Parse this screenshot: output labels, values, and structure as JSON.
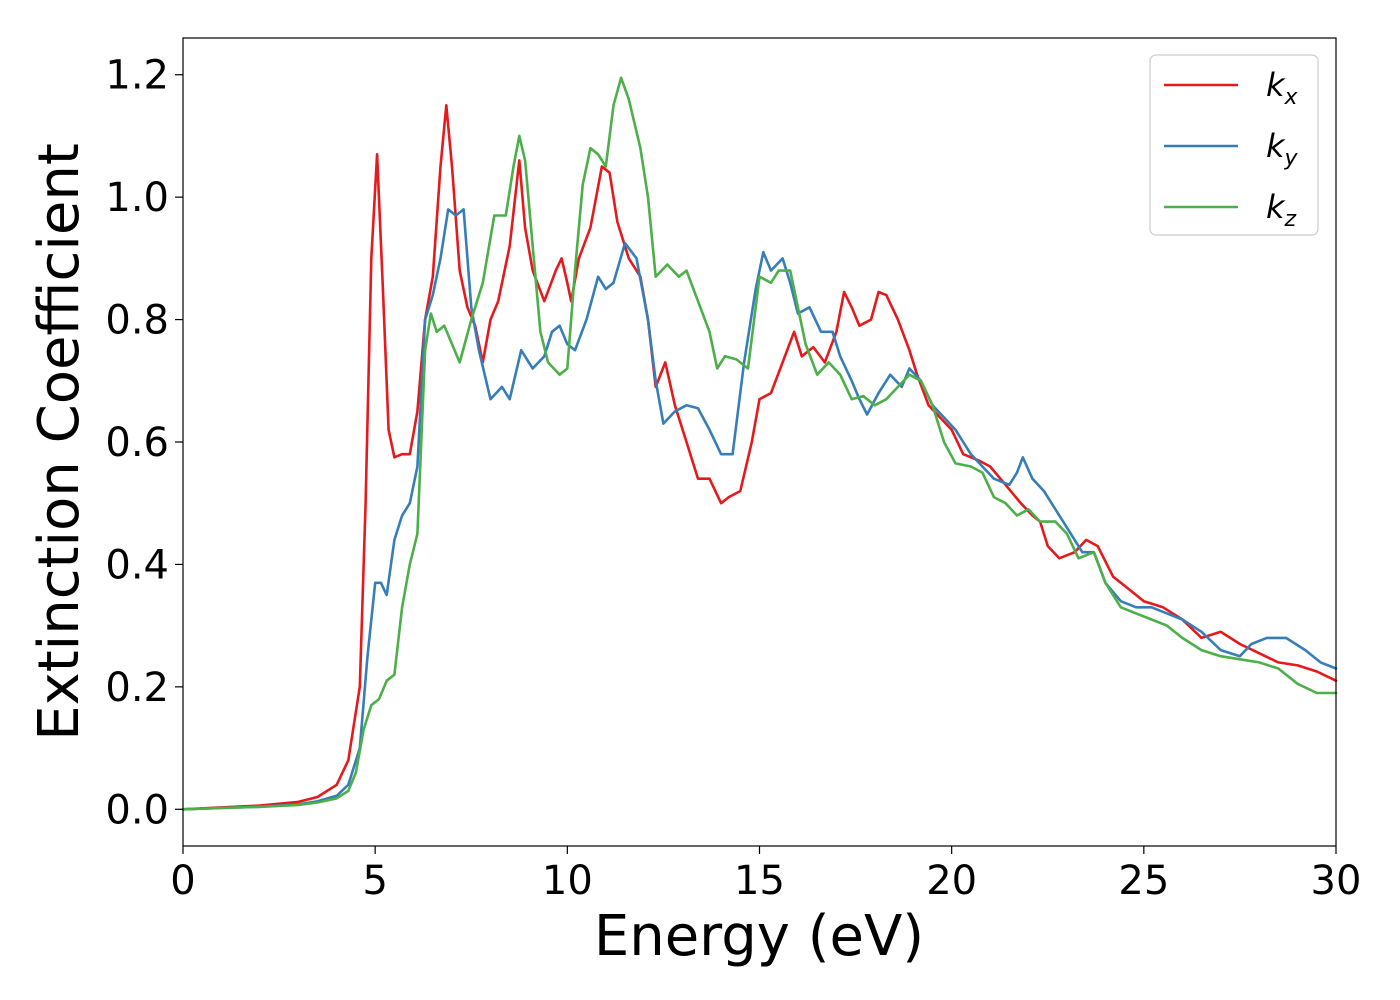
{
  "chart_data": {
    "type": "line",
    "title": "",
    "xlabel": "Energy (eV)",
    "ylabel": "Extinction Coefficient",
    "xlim": [
      0,
      30
    ],
    "ylim": [
      -0.06,
      1.26
    ],
    "xticks": [
      "0",
      "5",
      "10",
      "15",
      "20",
      "25",
      "30"
    ],
    "xtick_values": [
      0,
      5,
      10,
      15,
      20,
      25,
      30
    ],
    "yticks": [
      "0.0",
      "0.2",
      "0.4",
      "0.6",
      "0.8",
      "1.0",
      "1.2"
    ],
    "ytick_values": [
      0,
      0.2,
      0.4,
      0.6,
      0.8,
      1.0,
      1.2
    ],
    "grid": false,
    "legend_position": "top-right",
    "series": [
      {
        "name": "k",
        "subscript": "x",
        "color": "#e41a1c",
        "points": [
          [
            0,
            0
          ],
          [
            1,
            0.003
          ],
          [
            2,
            0.006
          ],
          [
            3,
            0.012
          ],
          [
            3.5,
            0.02
          ],
          [
            4,
            0.04
          ],
          [
            4.3,
            0.08
          ],
          [
            4.6,
            0.2
          ],
          [
            4.75,
            0.5
          ],
          [
            4.9,
            0.9
          ],
          [
            5.05,
            1.07
          ],
          [
            5.2,
            0.85
          ],
          [
            5.35,
            0.62
          ],
          [
            5.5,
            0.575
          ],
          [
            5.7,
            0.58
          ],
          [
            5.9,
            0.58
          ],
          [
            6.1,
            0.65
          ],
          [
            6.3,
            0.8
          ],
          [
            6.5,
            0.87
          ],
          [
            6.7,
            1.05
          ],
          [
            6.85,
            1.15
          ],
          [
            7.0,
            1.05
          ],
          [
            7.2,
            0.88
          ],
          [
            7.4,
            0.82
          ],
          [
            7.6,
            0.79
          ],
          [
            7.8,
            0.73
          ],
          [
            8.0,
            0.8
          ],
          [
            8.2,
            0.83
          ],
          [
            8.5,
            0.92
          ],
          [
            8.75,
            1.06
          ],
          [
            8.9,
            0.95
          ],
          [
            9.1,
            0.88
          ],
          [
            9.4,
            0.83
          ],
          [
            9.7,
            0.88
          ],
          [
            9.85,
            0.9
          ],
          [
            10.0,
            0.86
          ],
          [
            10.1,
            0.83
          ],
          [
            10.3,
            0.9
          ],
          [
            10.6,
            0.95
          ],
          [
            10.9,
            1.05
          ],
          [
            11.1,
            1.04
          ],
          [
            11.3,
            0.96
          ],
          [
            11.6,
            0.9
          ],
          [
            11.9,
            0.87
          ],
          [
            12.1,
            0.8
          ],
          [
            12.3,
            0.69
          ],
          [
            12.55,
            0.73
          ],
          [
            12.8,
            0.66
          ],
          [
            13.1,
            0.6
          ],
          [
            13.4,
            0.54
          ],
          [
            13.7,
            0.54
          ],
          [
            14.0,
            0.5
          ],
          [
            14.2,
            0.51
          ],
          [
            14.5,
            0.52
          ],
          [
            14.8,
            0.6
          ],
          [
            15.0,
            0.67
          ],
          [
            15.3,
            0.68
          ],
          [
            15.6,
            0.73
          ],
          [
            15.9,
            0.78
          ],
          [
            16.1,
            0.74
          ],
          [
            16.4,
            0.755
          ],
          [
            16.7,
            0.73
          ],
          [
            17.0,
            0.78
          ],
          [
            17.2,
            0.845
          ],
          [
            17.4,
            0.82
          ],
          [
            17.6,
            0.79
          ],
          [
            17.9,
            0.8
          ],
          [
            18.1,
            0.845
          ],
          [
            18.3,
            0.84
          ],
          [
            18.6,
            0.8
          ],
          [
            18.9,
            0.75
          ],
          [
            19.1,
            0.71
          ],
          [
            19.4,
            0.66
          ],
          [
            19.7,
            0.64
          ],
          [
            20.0,
            0.62
          ],
          [
            20.3,
            0.58
          ],
          [
            20.7,
            0.57
          ],
          [
            21.0,
            0.56
          ],
          [
            21.4,
            0.53
          ],
          [
            21.8,
            0.5
          ],
          [
            22.1,
            0.48
          ],
          [
            22.3,
            0.47
          ],
          [
            22.5,
            0.43
          ],
          [
            22.8,
            0.41
          ],
          [
            23.2,
            0.42
          ],
          [
            23.5,
            0.44
          ],
          [
            23.8,
            0.43
          ],
          [
            24.2,
            0.38
          ],
          [
            24.6,
            0.36
          ],
          [
            25.0,
            0.34
          ],
          [
            25.5,
            0.33
          ],
          [
            26.0,
            0.31
          ],
          [
            26.5,
            0.28
          ],
          [
            27.0,
            0.29
          ],
          [
            27.5,
            0.27
          ],
          [
            28.0,
            0.255
          ],
          [
            28.5,
            0.24
          ],
          [
            29.0,
            0.235
          ],
          [
            29.5,
            0.225
          ],
          [
            30.0,
            0.21
          ]
        ]
      },
      {
        "name": "k",
        "subscript": "y",
        "color": "#377eb8",
        "points": [
          [
            0,
            0
          ],
          [
            1,
            0.002
          ],
          [
            2,
            0.004
          ],
          [
            3,
            0.008
          ],
          [
            3.5,
            0.013
          ],
          [
            4,
            0.022
          ],
          [
            4.3,
            0.04
          ],
          [
            4.6,
            0.1
          ],
          [
            4.8,
            0.25
          ],
          [
            5.0,
            0.37
          ],
          [
            5.15,
            0.37
          ],
          [
            5.3,
            0.35
          ],
          [
            5.5,
            0.44
          ],
          [
            5.7,
            0.48
          ],
          [
            5.9,
            0.5
          ],
          [
            6.1,
            0.56
          ],
          [
            6.3,
            0.8
          ],
          [
            6.5,
            0.84
          ],
          [
            6.7,
            0.9
          ],
          [
            6.9,
            0.98
          ],
          [
            7.1,
            0.97
          ],
          [
            7.3,
            0.98
          ],
          [
            7.5,
            0.82
          ],
          [
            7.7,
            0.75
          ],
          [
            8.0,
            0.67
          ],
          [
            8.3,
            0.69
          ],
          [
            8.5,
            0.67
          ],
          [
            8.8,
            0.75
          ],
          [
            9.1,
            0.72
          ],
          [
            9.4,
            0.74
          ],
          [
            9.6,
            0.78
          ],
          [
            9.8,
            0.79
          ],
          [
            10.0,
            0.76
          ],
          [
            10.2,
            0.75
          ],
          [
            10.5,
            0.8
          ],
          [
            10.8,
            0.87
          ],
          [
            11.0,
            0.85
          ],
          [
            11.2,
            0.86
          ],
          [
            11.5,
            0.925
          ],
          [
            11.8,
            0.9
          ],
          [
            12.1,
            0.8
          ],
          [
            12.3,
            0.7
          ],
          [
            12.5,
            0.63
          ],
          [
            12.8,
            0.65
          ],
          [
            13.1,
            0.66
          ],
          [
            13.4,
            0.655
          ],
          [
            13.7,
            0.62
          ],
          [
            14.0,
            0.58
          ],
          [
            14.3,
            0.58
          ],
          [
            14.6,
            0.73
          ],
          [
            14.9,
            0.85
          ],
          [
            15.1,
            0.91
          ],
          [
            15.3,
            0.88
          ],
          [
            15.6,
            0.9
          ],
          [
            15.8,
            0.86
          ],
          [
            16.0,
            0.81
          ],
          [
            16.3,
            0.82
          ],
          [
            16.6,
            0.78
          ],
          [
            16.9,
            0.78
          ],
          [
            17.1,
            0.74
          ],
          [
            17.4,
            0.7
          ],
          [
            17.6,
            0.67
          ],
          [
            17.8,
            0.645
          ],
          [
            18.1,
            0.68
          ],
          [
            18.4,
            0.71
          ],
          [
            18.7,
            0.69
          ],
          [
            18.9,
            0.72
          ],
          [
            19.2,
            0.7
          ],
          [
            19.5,
            0.66
          ],
          [
            19.8,
            0.64
          ],
          [
            20.1,
            0.62
          ],
          [
            20.5,
            0.58
          ],
          [
            20.8,
            0.56
          ],
          [
            21.1,
            0.54
          ],
          [
            21.5,
            0.53
          ],
          [
            21.7,
            0.55
          ],
          [
            21.85,
            0.575
          ],
          [
            22.1,
            0.54
          ],
          [
            22.4,
            0.52
          ],
          [
            22.7,
            0.49
          ],
          [
            23.0,
            0.46
          ],
          [
            23.4,
            0.42
          ],
          [
            23.7,
            0.42
          ],
          [
            24.0,
            0.37
          ],
          [
            24.4,
            0.34
          ],
          [
            24.8,
            0.33
          ],
          [
            25.2,
            0.33
          ],
          [
            25.6,
            0.32
          ],
          [
            26.0,
            0.31
          ],
          [
            26.5,
            0.29
          ],
          [
            27.0,
            0.26
          ],
          [
            27.5,
            0.25
          ],
          [
            27.8,
            0.27
          ],
          [
            28.2,
            0.28
          ],
          [
            28.7,
            0.28
          ],
          [
            29.2,
            0.26
          ],
          [
            29.6,
            0.24
          ],
          [
            30.0,
            0.23
          ]
        ]
      },
      {
        "name": "k",
        "subscript": "z",
        "color": "#4daf4a",
        "points": [
          [
            0,
            0
          ],
          [
            1,
            0.002
          ],
          [
            2,
            0.004
          ],
          [
            3,
            0.007
          ],
          [
            3.5,
            0.011
          ],
          [
            4,
            0.018
          ],
          [
            4.3,
            0.03
          ],
          [
            4.5,
            0.06
          ],
          [
            4.7,
            0.13
          ],
          [
            4.9,
            0.17
          ],
          [
            5.1,
            0.18
          ],
          [
            5.3,
            0.21
          ],
          [
            5.5,
            0.22
          ],
          [
            5.7,
            0.33
          ],
          [
            5.9,
            0.4
          ],
          [
            6.1,
            0.45
          ],
          [
            6.3,
            0.75
          ],
          [
            6.45,
            0.81
          ],
          [
            6.6,
            0.78
          ],
          [
            6.8,
            0.79
          ],
          [
            7.0,
            0.76
          ],
          [
            7.2,
            0.73
          ],
          [
            7.5,
            0.8
          ],
          [
            7.8,
            0.86
          ],
          [
            8.1,
            0.97
          ],
          [
            8.4,
            0.97
          ],
          [
            8.6,
            1.05
          ],
          [
            8.75,
            1.1
          ],
          [
            8.9,
            1.06
          ],
          [
            9.1,
            0.92
          ],
          [
            9.3,
            0.78
          ],
          [
            9.5,
            0.73
          ],
          [
            9.8,
            0.71
          ],
          [
            10.0,
            0.72
          ],
          [
            10.2,
            0.88
          ],
          [
            10.4,
            1.02
          ],
          [
            10.6,
            1.08
          ],
          [
            10.8,
            1.07
          ],
          [
            11.0,
            1.05
          ],
          [
            11.2,
            1.15
          ],
          [
            11.4,
            1.195
          ],
          [
            11.6,
            1.16
          ],
          [
            11.9,
            1.08
          ],
          [
            12.1,
            1.0
          ],
          [
            12.3,
            0.87
          ],
          [
            12.6,
            0.89
          ],
          [
            12.9,
            0.87
          ],
          [
            13.1,
            0.88
          ],
          [
            13.4,
            0.83
          ],
          [
            13.7,
            0.78
          ],
          [
            13.9,
            0.72
          ],
          [
            14.1,
            0.74
          ],
          [
            14.4,
            0.735
          ],
          [
            14.7,
            0.72
          ],
          [
            15.0,
            0.87
          ],
          [
            15.3,
            0.86
          ],
          [
            15.5,
            0.88
          ],
          [
            15.8,
            0.88
          ],
          [
            16.0,
            0.82
          ],
          [
            16.2,
            0.76
          ],
          [
            16.5,
            0.71
          ],
          [
            16.8,
            0.73
          ],
          [
            17.1,
            0.71
          ],
          [
            17.4,
            0.67
          ],
          [
            17.7,
            0.675
          ],
          [
            18.0,
            0.66
          ],
          [
            18.3,
            0.67
          ],
          [
            18.6,
            0.69
          ],
          [
            18.9,
            0.71
          ],
          [
            19.2,
            0.7
          ],
          [
            19.5,
            0.66
          ],
          [
            19.8,
            0.6
          ],
          [
            20.1,
            0.565
          ],
          [
            20.5,
            0.56
          ],
          [
            20.8,
            0.55
          ],
          [
            21.1,
            0.51
          ],
          [
            21.4,
            0.5
          ],
          [
            21.7,
            0.48
          ],
          [
            22.0,
            0.49
          ],
          [
            22.3,
            0.47
          ],
          [
            22.7,
            0.47
          ],
          [
            23.0,
            0.45
          ],
          [
            23.3,
            0.41
          ],
          [
            23.7,
            0.42
          ],
          [
            24.0,
            0.37
          ],
          [
            24.4,
            0.33
          ],
          [
            24.8,
            0.32
          ],
          [
            25.2,
            0.31
          ],
          [
            25.6,
            0.3
          ],
          [
            26.0,
            0.28
          ],
          [
            26.5,
            0.26
          ],
          [
            27.0,
            0.25
          ],
          [
            27.5,
            0.245
          ],
          [
            28.0,
            0.24
          ],
          [
            28.5,
            0.23
          ],
          [
            29.0,
            0.205
          ],
          [
            29.5,
            0.19
          ],
          [
            30.0,
            0.19
          ]
        ]
      }
    ]
  }
}
